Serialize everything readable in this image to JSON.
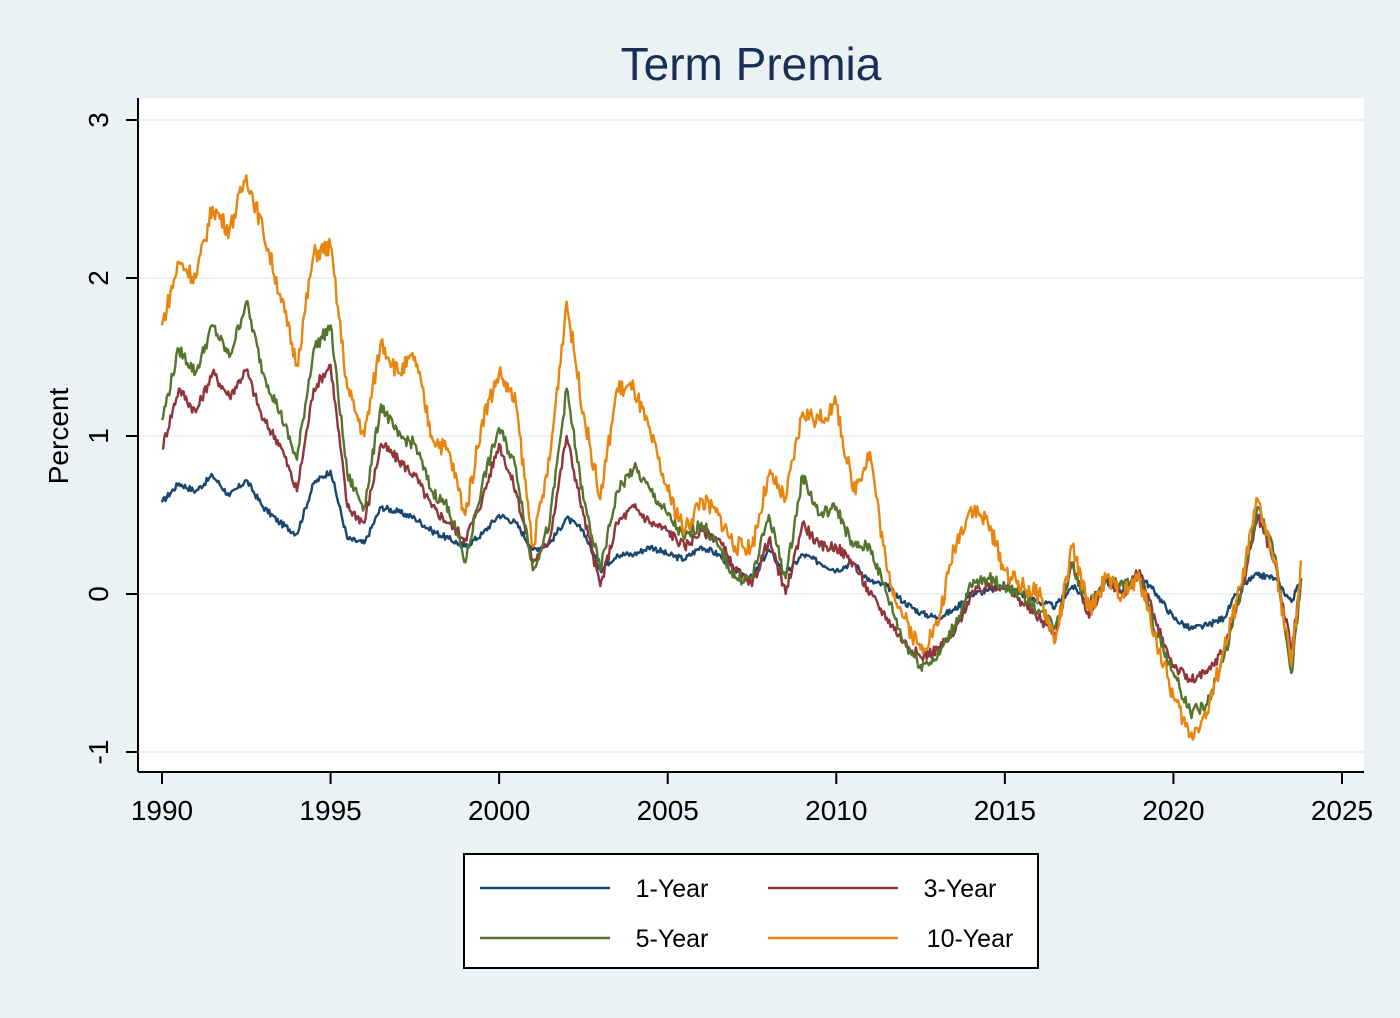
{
  "chart_data": {
    "type": "line",
    "title": "Term Premia",
    "ylabel": "Percent",
    "xlabel": "",
    "xlim": [
      1990,
      2025
    ],
    "ylim": [
      -1,
      3
    ],
    "xticks": [
      "1990",
      "1995",
      "2000",
      "2005",
      "2010",
      "2015",
      "2020",
      "2025"
    ],
    "yticks": [
      "-1",
      "0",
      "1",
      "2",
      "3"
    ],
    "grid": true,
    "legend_position": "bottom",
    "series": [
      {
        "name": "1-Year",
        "color": "#1a476f",
        "x": [
          1990.0,
          1990.5,
          1991.0,
          1991.5,
          1992.0,
          1992.5,
          1993.0,
          1993.5,
          1994.0,
          1994.5,
          1995.0,
          1995.5,
          1996.0,
          1996.5,
          1997.0,
          1997.5,
          1998.0,
          1998.5,
          1999.0,
          1999.5,
          2000.0,
          2000.5,
          2001.0,
          2001.5,
          2002.0,
          2002.5,
          2003.0,
          2003.5,
          2004.0,
          2004.5,
          2005.0,
          2005.5,
          2006.0,
          2006.5,
          2007.0,
          2007.5,
          2008.0,
          2008.5,
          2009.0,
          2009.5,
          2010.0,
          2010.5,
          2011.0,
          2011.5,
          2012.0,
          2012.5,
          2013.0,
          2013.5,
          2014.0,
          2014.5,
          2015.0,
          2015.5,
          2016.0,
          2016.5,
          2017.0,
          2017.5,
          2018.0,
          2018.5,
          2019.0,
          2019.5,
          2020.0,
          2020.5,
          2021.0,
          2021.5,
          2022.0,
          2022.5,
          2023.0,
          2023.5,
          2023.8
        ],
        "values": [
          0.58,
          0.7,
          0.65,
          0.75,
          0.62,
          0.72,
          0.55,
          0.45,
          0.38,
          0.7,
          0.78,
          0.35,
          0.32,
          0.55,
          0.52,
          0.48,
          0.4,
          0.35,
          0.3,
          0.38,
          0.5,
          0.45,
          0.28,
          0.32,
          0.48,
          0.4,
          0.15,
          0.25,
          0.25,
          0.3,
          0.25,
          0.22,
          0.3,
          0.25,
          0.15,
          0.1,
          0.28,
          0.12,
          0.25,
          0.2,
          0.15,
          0.2,
          0.08,
          0.05,
          -0.05,
          -0.12,
          -0.15,
          -0.1,
          0.0,
          0.02,
          0.05,
          0.0,
          -0.05,
          -0.08,
          0.05,
          -0.05,
          0.08,
          0.02,
          0.12,
          0.0,
          -0.15,
          -0.22,
          -0.2,
          -0.15,
          0.05,
          0.12,
          0.1,
          -0.05,
          0.1
        ]
      },
      {
        "name": "3-Year",
        "color": "#90353b",
        "x": [
          1990.0,
          1990.5,
          1991.0,
          1991.5,
          1992.0,
          1992.5,
          1993.0,
          1993.5,
          1994.0,
          1994.5,
          1995.0,
          1995.5,
          1996.0,
          1996.5,
          1997.0,
          1997.5,
          1998.0,
          1998.5,
          1999.0,
          1999.5,
          2000.0,
          2000.5,
          2001.0,
          2001.5,
          2002.0,
          2002.5,
          2003.0,
          2003.5,
          2004.0,
          2004.5,
          2005.0,
          2005.5,
          2006.0,
          2006.5,
          2007.0,
          2007.5,
          2008.0,
          2008.5,
          2009.0,
          2009.5,
          2010.0,
          2010.5,
          2011.0,
          2011.5,
          2012.0,
          2012.5,
          2013.0,
          2013.5,
          2014.0,
          2014.5,
          2015.0,
          2015.5,
          2016.0,
          2016.5,
          2017.0,
          2017.5,
          2018.0,
          2018.5,
          2019.0,
          2019.5,
          2020.0,
          2020.5,
          2021.0,
          2021.5,
          2022.0,
          2022.5,
          2023.0,
          2023.5,
          2023.8
        ],
        "values": [
          0.92,
          1.3,
          1.15,
          1.4,
          1.25,
          1.42,
          1.1,
          0.95,
          0.65,
          1.3,
          1.45,
          0.55,
          0.45,
          0.95,
          0.85,
          0.75,
          0.55,
          0.45,
          0.35,
          0.6,
          0.95,
          0.65,
          0.2,
          0.35,
          1.0,
          0.5,
          0.05,
          0.45,
          0.55,
          0.45,
          0.4,
          0.3,
          0.4,
          0.35,
          0.15,
          0.05,
          0.35,
          0.0,
          0.45,
          0.3,
          0.3,
          0.2,
          0.0,
          -0.15,
          -0.3,
          -0.4,
          -0.35,
          -0.25,
          0.0,
          0.05,
          0.05,
          -0.05,
          -0.15,
          -0.25,
          0.2,
          -0.15,
          0.1,
          0.0,
          0.15,
          -0.2,
          -0.45,
          -0.55,
          -0.5,
          -0.35,
          0.0,
          0.5,
          0.2,
          -0.35,
          0.1
        ]
      },
      {
        "name": "5-Year",
        "color": "#55752f",
        "x": [
          1990.0,
          1990.5,
          1991.0,
          1991.5,
          1992.0,
          1992.5,
          1993.0,
          1993.5,
          1994.0,
          1994.5,
          1995.0,
          1995.5,
          1996.0,
          1996.5,
          1997.0,
          1997.5,
          1998.0,
          1998.5,
          1999.0,
          1999.5,
          2000.0,
          2000.5,
          2001.0,
          2001.5,
          2002.0,
          2002.5,
          2003.0,
          2003.5,
          2004.0,
          2004.5,
          2005.0,
          2005.5,
          2006.0,
          2006.5,
          2007.0,
          2007.5,
          2008.0,
          2008.5,
          2009.0,
          2009.5,
          2010.0,
          2010.5,
          2011.0,
          2011.5,
          2012.0,
          2012.5,
          2013.0,
          2013.5,
          2014.0,
          2014.5,
          2015.0,
          2015.5,
          2016.0,
          2016.5,
          2017.0,
          2017.5,
          2018.0,
          2018.5,
          2019.0,
          2019.5,
          2020.0,
          2020.5,
          2021.0,
          2021.5,
          2022.0,
          2022.5,
          2023.0,
          2023.5,
          2023.8
        ],
        "values": [
          1.1,
          1.55,
          1.4,
          1.7,
          1.5,
          1.85,
          1.4,
          1.15,
          0.85,
          1.55,
          1.7,
          0.75,
          0.55,
          1.2,
          1.0,
          0.95,
          0.65,
          0.55,
          0.2,
          0.7,
          1.05,
          0.8,
          0.15,
          0.45,
          1.3,
          0.6,
          0.15,
          0.65,
          0.8,
          0.65,
          0.5,
          0.35,
          0.45,
          0.3,
          0.1,
          0.1,
          0.5,
          0.1,
          0.75,
          0.5,
          0.55,
          0.3,
          0.3,
          0.0,
          -0.3,
          -0.45,
          -0.4,
          -0.2,
          0.05,
          0.1,
          0.05,
          0.0,
          -0.1,
          -0.2,
          0.2,
          -0.1,
          0.1,
          0.05,
          0.1,
          -0.25,
          -0.5,
          -0.75,
          -0.7,
          -0.4,
          0.0,
          0.55,
          0.25,
          -0.5,
          0.1
        ]
      },
      {
        "name": "10-Year",
        "color": "#e8850f",
        "x": [
          1990.0,
          1990.5,
          1991.0,
          1991.5,
          1992.0,
          1992.5,
          1993.0,
          1993.5,
          1994.0,
          1994.5,
          1995.0,
          1995.5,
          1996.0,
          1996.5,
          1997.0,
          1997.5,
          1998.0,
          1998.5,
          1999.0,
          1999.5,
          2000.0,
          2000.5,
          2001.0,
          2001.5,
          2002.0,
          2002.5,
          2003.0,
          2003.5,
          2004.0,
          2004.5,
          2005.0,
          2005.5,
          2006.0,
          2006.5,
          2007.0,
          2007.5,
          2008.0,
          2008.5,
          2009.0,
          2009.5,
          2010.0,
          2010.5,
          2011.0,
          2011.5,
          2012.0,
          2012.5,
          2013.0,
          2013.5,
          2014.0,
          2014.5,
          2015.0,
          2015.5,
          2016.0,
          2016.5,
          2017.0,
          2017.5,
          2018.0,
          2018.5,
          2019.0,
          2019.5,
          2020.0,
          2020.5,
          2021.0,
          2021.5,
          2022.0,
          2022.5,
          2023.0,
          2023.5,
          2023.8
        ],
        "values": [
          1.7,
          2.1,
          2.0,
          2.45,
          2.3,
          2.65,
          2.3,
          1.9,
          1.45,
          2.15,
          2.2,
          1.3,
          1.0,
          1.6,
          1.4,
          1.5,
          1.0,
          0.9,
          0.5,
          1.1,
          1.4,
          1.2,
          0.3,
          0.85,
          1.85,
          1.15,
          0.6,
          1.3,
          1.3,
          1.0,
          0.65,
          0.4,
          0.6,
          0.5,
          0.3,
          0.3,
          0.75,
          0.6,
          1.15,
          1.1,
          1.2,
          0.65,
          0.9,
          0.15,
          -0.15,
          -0.35,
          -0.2,
          0.3,
          0.55,
          0.45,
          0.15,
          0.05,
          0.0,
          -0.3,
          0.3,
          -0.1,
          0.1,
          0.0,
          0.1,
          -0.3,
          -0.65,
          -0.9,
          -0.75,
          -0.35,
          0.05,
          0.6,
          0.2,
          -0.45,
          0.2
        ]
      }
    ]
  }
}
